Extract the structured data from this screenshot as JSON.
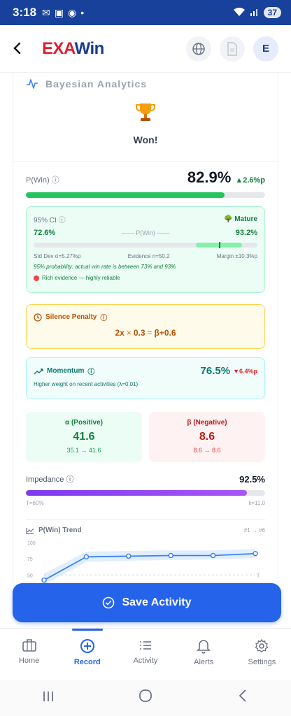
{
  "status_bar": {
    "time": "3:18",
    "battery": "37"
  },
  "header": {
    "logo_ex": "EXA",
    "logo_win": "Win",
    "avatar_initial": "E"
  },
  "section": {
    "title": "Bayesian Analytics"
  },
  "outcome": {
    "label": "Won!"
  },
  "pwin": {
    "label": "P(Win)",
    "value": "82.9%",
    "delta": "▲2.6%p",
    "progress": 0.829
  },
  "confidence": {
    "label": "95% CI",
    "maturity": "Mature",
    "low": "72.6%",
    "high": "93.2%",
    "middle_label": "P(Win)",
    "range_low": 0.726,
    "range_high": 0.932,
    "point": 0.829,
    "std_dev": "Std Dev σ=5.27%p",
    "evidence": "Evidence n=50.2",
    "margin": "Margin ±10.3%p",
    "note": "95% probability: actual win rate is between 73% and 93%",
    "reliability": "Rich evidence — highly reliable"
  },
  "silence_penalty": {
    "title": "Silence Penalty",
    "factor": "2x",
    "weight": "0.3",
    "result": "β+0.6"
  },
  "momentum": {
    "title": "Momentum",
    "value": "76.5%",
    "delta": "▼6.4%p",
    "subtitle": "Higher weight on recent activities (λ=0.01)"
  },
  "alpha": {
    "title": "α (Positive)",
    "value": "41.6",
    "change": "35.1 → 41.6"
  },
  "beta": {
    "title": "β (Negative)",
    "value": "8.6",
    "change": "8.6 → 8.6"
  },
  "impedance": {
    "label": "Impedance",
    "value": "92.5%",
    "progress": 0.925,
    "threshold": "T=60%",
    "k": "k=11.0"
  },
  "trend": {
    "title": "P(Win) Trend",
    "range": "#1 → #6",
    "threshold_label": "T"
  },
  "chart_data": {
    "type": "line",
    "title": "P(Win) Trend",
    "x": [
      1,
      2,
      3,
      4,
      5,
      6
    ],
    "series": [
      {
        "values": [
          42,
          78,
          79,
          80,
          80,
          83
        ]
      }
    ],
    "band_low": [
      35,
      70,
      72,
      73,
      74,
      76
    ],
    "band_high": [
      52,
      86,
      87,
      88,
      88,
      90
    ],
    "threshold": 50,
    "ylim": [
      20,
      100
    ],
    "yticks": [
      25,
      50,
      75,
      100
    ]
  },
  "save_button": {
    "label": "Save Activity"
  },
  "nav": {
    "items": [
      {
        "label": "Home",
        "icon": "briefcase-icon"
      },
      {
        "label": "Record",
        "icon": "plus-circle-icon"
      },
      {
        "label": "Activity",
        "icon": "list-icon"
      },
      {
        "label": "Alerts",
        "icon": "bell-icon"
      },
      {
        "label": "Settings",
        "icon": "gear-icon"
      }
    ],
    "active_index": 1
  },
  "colors": {
    "primary": "#2563eb",
    "brand_red": "#e11d2e",
    "brand_blue": "#1a3a8f",
    "success": "#22c55e"
  }
}
